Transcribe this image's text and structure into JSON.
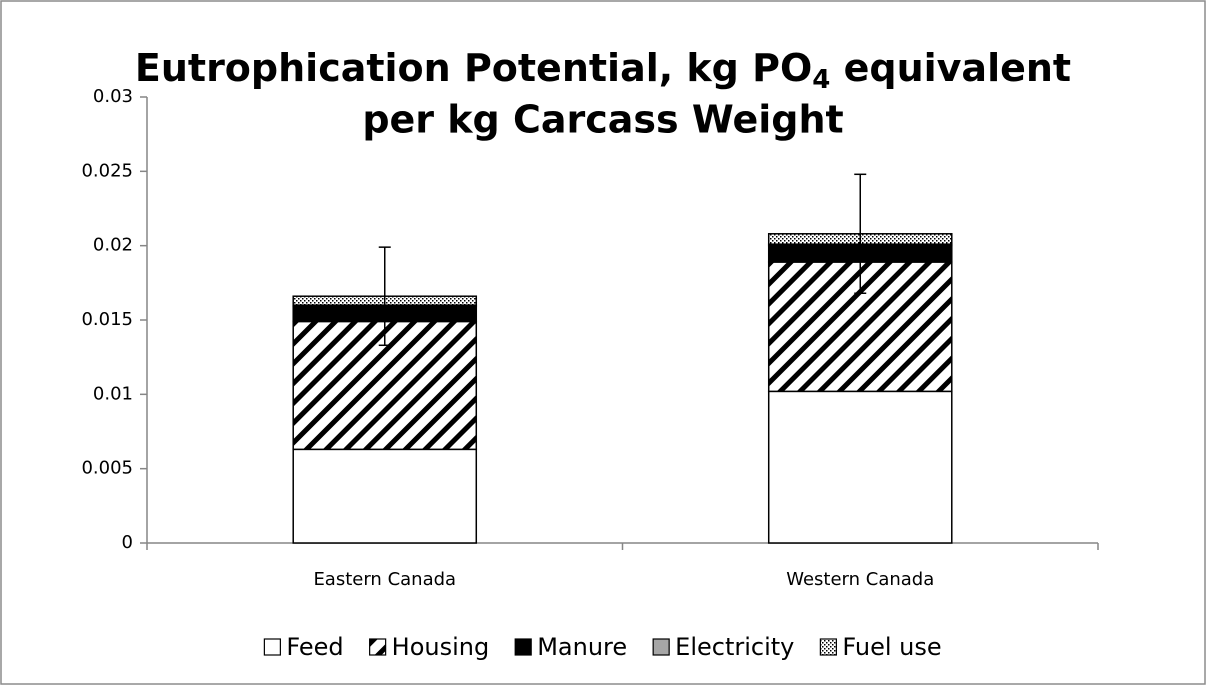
{
  "chart_data": {
    "type": "stacked_bar",
    "title": [
      "Eutrophication Potential, kg PO",
      "4",
      " equivalent",
      "per kg Carcass Weight"
    ],
    "categories": [
      "Eastern Canada",
      "Western Canada"
    ],
    "series": [
      {
        "name": "Feed",
        "color": "#ffffff",
        "pattern": null,
        "values": [
          0.0063,
          0.0102
        ]
      },
      {
        "name": "Housing",
        "color": "#000000",
        "pattern": "hatch",
        "values": [
          0.0086,
          0.0087
        ]
      },
      {
        "name": "Manure",
        "color": "#000000",
        "pattern": null,
        "values": [
          0.001,
          0.0011
        ]
      },
      {
        "name": "Electricity",
        "color": "#a6a6a6",
        "pattern": null,
        "values": [
          0.0001,
          0.0001
        ]
      },
      {
        "name": "Fuel use",
        "color": "#000000",
        "pattern": "dots",
        "values": [
          0.0006,
          0.0007
        ]
      }
    ],
    "errors": [
      0.0033,
      0.004
    ],
    "ylim": [
      0,
      0.03
    ],
    "yticks": [
      0,
      0.005,
      0.01,
      0.015,
      0.02,
      0.025,
      0.03
    ],
    "grid": false,
    "legend": "bottom"
  }
}
